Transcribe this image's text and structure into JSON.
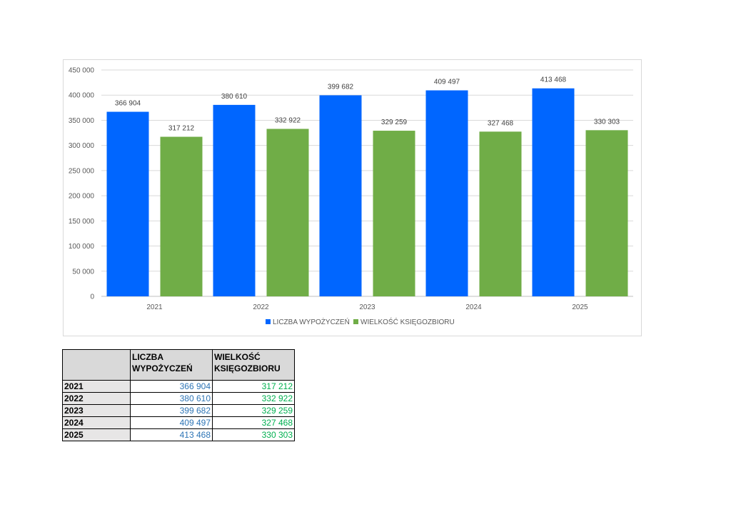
{
  "colors": {
    "series1": "#0066ff",
    "series2": "#70ad47",
    "table_series1": "#2e75b6",
    "table_series2": "#00b050"
  },
  "chart_data": {
    "type": "bar",
    "categories": [
      "2021",
      "2022",
      "2023",
      "2024",
      "2025"
    ],
    "series": [
      {
        "name": "LICZBA WYPOŻYCZEŃ",
        "values": [
          366904,
          380610,
          399682,
          409497,
          413468
        ],
        "labels": [
          "366 904",
          "380 610",
          "399 682",
          "409 497",
          "413 468"
        ]
      },
      {
        "name": "WIELKOŚĆ KSIĘGOZBIORU",
        "values": [
          317212,
          332922,
          329259,
          327468,
          330303
        ],
        "labels": [
          "317 212",
          "332 922",
          "329 259",
          "327 468",
          "330 303"
        ]
      }
    ],
    "ylim": [
      0,
      450000
    ],
    "ytick_labels": [
      "0",
      "50 000",
      "100 000",
      "150 000",
      "200 000",
      "250 000",
      "300 000",
      "350 000",
      "400 000",
      "450 000"
    ],
    "grid": true,
    "legend_position": "bottom"
  },
  "table": {
    "headers": [
      "",
      "LICZBA WYPOŻYCZEŃ",
      "WIELKOŚĆ KSIĘGOZBIORU"
    ],
    "rows": [
      {
        "year": "2021",
        "v1": "366 904",
        "v2": "317 212"
      },
      {
        "year": "2022",
        "v1": "380 610",
        "v2": "332 922"
      },
      {
        "year": "2023",
        "v1": "399 682",
        "v2": "329 259"
      },
      {
        "year": "2024",
        "v1": "409 497",
        "v2": "327 468"
      },
      {
        "year": "2025",
        "v1": "413 468",
        "v2": "330 303"
      }
    ]
  }
}
